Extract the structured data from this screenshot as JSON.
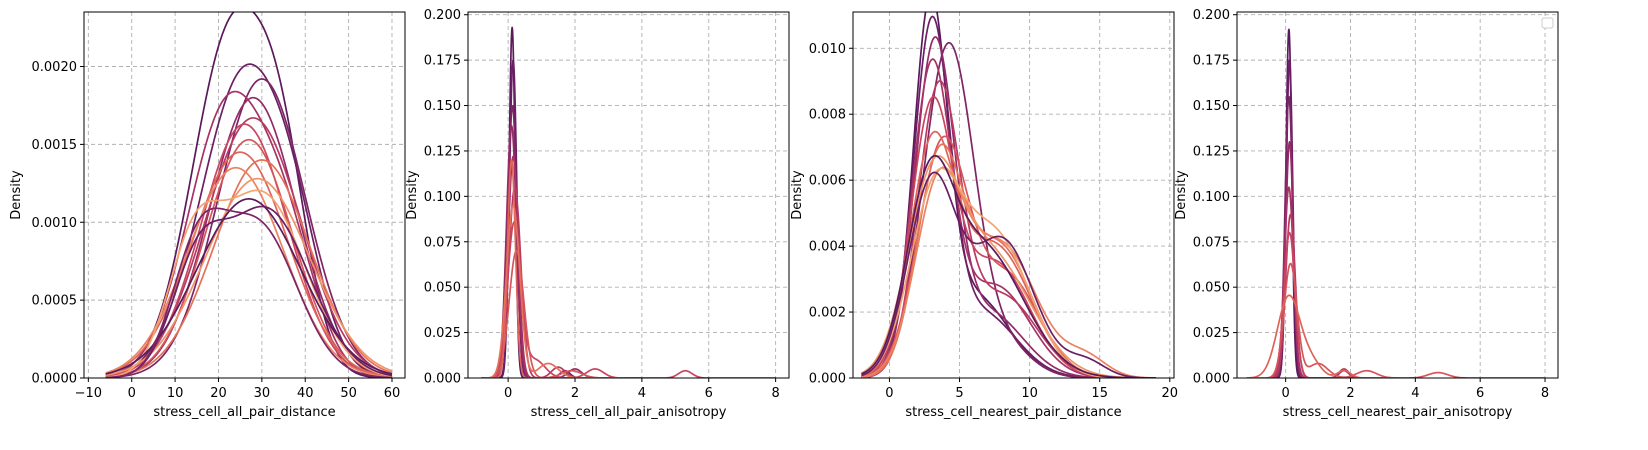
{
  "figure": {
    "background": "#ffffff"
  },
  "palette": [
    "#5a1a5c",
    "#6b1f64",
    "#7e2566",
    "#922b66",
    "#a73265",
    "#b83a62",
    "#c94660",
    "#d5555b",
    "#de6459",
    "#e57158",
    "#eb8260",
    "#ef9466",
    "#f3a46f"
  ],
  "chart_data": [
    {
      "type": "line",
      "xlabel": "stress_cell_all_pair_distance",
      "ylabel": "Density",
      "xlim": [
        -11,
        63
      ],
      "ylim": [
        0,
        0.00235
      ],
      "xticks": [
        -10,
        0,
        10,
        20,
        30,
        40,
        50,
        60
      ],
      "xtick_labels": [
        "−10",
        "0",
        "10",
        "20",
        "30",
        "40",
        "50",
        "60"
      ],
      "yticks": [
        0,
        0.0005,
        0.001,
        0.0015,
        0.002
      ],
      "ytick_labels": [
        "0.0000",
        "0.0005",
        "0.0010",
        "0.0015",
        "0.0020"
      ],
      "grid": true,
      "kde_series": [
        {
          "peaks": [
            [
              23,
              9,
              0.00221
            ],
            [
              35,
              6,
              0.0009
            ]
          ],
          "range": [
            -6,
            60
          ]
        },
        {
          "peaks": [
            [
              26,
              10,
              0.00195
            ],
            [
              38,
              6,
              0.0004
            ]
          ],
          "range": [
            -6,
            60
          ]
        },
        {
          "peaks": [
            [
              30,
              10,
              0.00192
            ]
          ],
          "range": [
            -6,
            60
          ]
        },
        {
          "peaks": [
            [
              28,
              10,
              0.0018
            ]
          ],
          "range": [
            -6,
            60
          ]
        },
        {
          "peaks": [
            [
              22,
              9,
              0.00172
            ],
            [
              36,
              7,
              0.0007
            ]
          ],
          "range": [
            -6,
            60
          ]
        },
        {
          "peaks": [
            [
              28,
              11,
              0.00167
            ]
          ],
          "range": [
            -6,
            60
          ]
        },
        {
          "peaks": [
            [
              26,
              10,
              0.00163
            ]
          ],
          "range": [
            -6,
            60
          ]
        },
        {
          "peaks": [
            [
              27,
              10,
              0.00153
            ]
          ],
          "range": [
            -6,
            60
          ]
        },
        {
          "peaks": [
            [
              25,
              11,
              0.00145
            ]
          ],
          "range": [
            -6,
            60
          ]
        },
        {
          "peaks": [
            [
              30,
              11,
              0.0014
            ]
          ],
          "range": [
            -6,
            60
          ]
        },
        {
          "peaks": [
            [
              24,
              11,
              0.00135
            ]
          ],
          "range": [
            -6,
            60
          ]
        },
        {
          "peaks": [
            [
              29,
              12,
              0.00128
            ]
          ],
          "range": [
            -6,
            60
          ]
        },
        {
          "peaks": [
            [
              14,
              6,
              0.0007
            ],
            [
              30,
              10,
              0.00118
            ]
          ],
          "range": [
            -6,
            60
          ]
        },
        {
          "peaks": [
            [
              27,
              12,
              0.00115
            ]
          ],
          "range": [
            -6,
            60
          ]
        },
        {
          "peaks": [
            [
              15,
              6,
              0.0006
            ],
            [
              31,
              10,
              0.00108
            ]
          ],
          "range": [
            -6,
            60
          ]
        },
        {
          "peaks": [
            [
              15,
              6,
              0.0007
            ],
            [
              29,
              9,
              0.00098
            ]
          ],
          "range": [
            -6,
            60
          ]
        }
      ]
    },
    {
      "type": "line",
      "xlabel": "stress_cell_all_pair_anisotropy",
      "ylabel": "Density",
      "xlim": [
        -1.2,
        8.4
      ],
      "ylim": [
        0,
        0.2015
      ],
      "xticks": [
        0,
        2,
        4,
        6,
        8
      ],
      "xtick_labels": [
        "0",
        "2",
        "4",
        "6",
        "8"
      ],
      "yticks": [
        0,
        0.025,
        0.05,
        0.075,
        0.1,
        0.125,
        0.15,
        0.175,
        0.2
      ],
      "ytick_labels": [
        "0.000",
        "0.025",
        "0.050",
        "0.075",
        "0.100",
        "0.125",
        "0.150",
        "0.175",
        "0.200"
      ],
      "grid": true,
      "kde_series": [
        {
          "peaks": [
            [
              0.12,
              0.09,
              0.193
            ]
          ],
          "range": [
            -0.3,
            2.5
          ]
        },
        {
          "peaks": [
            [
              0.15,
              0.11,
              0.175
            ]
          ],
          "range": [
            -0.3,
            2.5
          ]
        },
        {
          "peaks": [
            [
              0.13,
              0.13,
              0.15
            ],
            [
              1.7,
              0.15,
              0.004
            ]
          ],
          "range": [
            -0.4,
            3.0
          ]
        },
        {
          "peaks": [
            [
              0.1,
              0.15,
              0.139
            ],
            [
              2.0,
              0.2,
              0.005
            ]
          ],
          "range": [
            -0.5,
            3.5
          ]
        },
        {
          "peaks": [
            [
              0.15,
              0.15,
              0.122
            ]
          ],
          "range": [
            -0.5,
            3.0
          ]
        },
        {
          "peaks": [
            [
              0.2,
              0.18,
              0.105
            ],
            [
              1.5,
              0.2,
              0.006
            ]
          ],
          "range": [
            -0.6,
            3.5
          ]
        },
        {
          "peaks": [
            [
              0.18,
              0.2,
              0.085
            ],
            [
              0.8,
              0.3,
              0.01
            ],
            [
              2.6,
              0.25,
              0.005
            ],
            [
              5.3,
              0.2,
              0.004
            ]
          ],
          "range": [
            -0.8,
            8.0
          ]
        },
        {
          "peaks": [
            [
              0.25,
              0.22,
              0.07
            ],
            [
              1.9,
              0.3,
              0.004
            ]
          ],
          "range": [
            -0.8,
            4.0
          ]
        },
        {
          "peaks": [
            [
              0.1,
              0.12,
              0.12
            ]
          ],
          "range": [
            -0.4,
            2.5
          ]
        },
        {
          "peaks": [
            [
              0.15,
              0.2,
              0.095
            ],
            [
              1.2,
              0.3,
              0.008
            ]
          ],
          "range": [
            -0.7,
            3.5
          ]
        }
      ]
    },
    {
      "type": "line",
      "xlabel": "stress_cell_nearest_pair_distance",
      "ylabel": "Density",
      "xlim": [
        -2.6,
        20.3
      ],
      "ylim": [
        0,
        0.0111
      ],
      "xticks": [
        0,
        5,
        10,
        15,
        20
      ],
      "xtick_labels": [
        "0",
        "5",
        "10",
        "15",
        "20"
      ],
      "yticks": [
        0,
        0.002,
        0.004,
        0.006,
        0.008,
        0.01
      ],
      "ytick_labels": [
        "0.000",
        "0.002",
        "0.004",
        "0.006",
        "0.008",
        "0.010"
      ],
      "grid": true,
      "kde_series": [
        {
          "peaks": [
            [
              2.9,
              1.2,
              0.0105
            ],
            [
              6,
              2.5,
              0.0025
            ]
          ],
          "range": [
            -2,
            19
          ]
        },
        {
          "peaks": [
            [
              3.0,
              1.3,
              0.0102
            ],
            [
              6.5,
              2.5,
              0.002
            ]
          ],
          "range": [
            -2,
            19
          ]
        },
        {
          "peaks": [
            [
              4.2,
              1.8,
              0.01
            ],
            [
              8,
              2,
              0.001
            ]
          ],
          "range": [
            -2,
            19
          ]
        },
        {
          "peaks": [
            [
              3.2,
              1.4,
              0.0097
            ],
            [
              7,
              2.5,
              0.002
            ]
          ],
          "range": [
            -2,
            19
          ]
        },
        {
          "peaks": [
            [
              3.0,
              1.4,
              0.0091
            ],
            [
              7.5,
              2.5,
              0.0028
            ]
          ],
          "range": [
            -2,
            19
          ]
        },
        {
          "peaks": [
            [
              3.5,
              1.5,
              0.0085
            ],
            [
              8,
              2.5,
              0.0025
            ]
          ],
          "range": [
            -2,
            19
          ]
        },
        {
          "peaks": [
            [
              3.0,
              1.5,
              0.0078
            ],
            [
              7.5,
              2.5,
              0.0035
            ]
          ],
          "range": [
            -2,
            19
          ]
        },
        {
          "peaks": [
            [
              3.8,
              1.8,
              0.007
            ],
            [
              8.5,
              2.2,
              0.003
            ]
          ],
          "range": [
            -2,
            19
          ]
        },
        {
          "peaks": [
            [
              3.0,
              1.6,
              0.0065
            ],
            [
              7.5,
              2.6,
              0.004
            ]
          ],
          "range": [
            -2,
            19
          ]
        },
        {
          "peaks": [
            [
              3.5,
              1.6,
              0.0062
            ],
            [
              7.8,
              2.4,
              0.004
            ]
          ],
          "range": [
            -2,
            19
          ]
        },
        {
          "peaks": [
            [
              3.5,
              1.7,
              0.0055
            ],
            [
              8,
              2.5,
              0.004
            ],
            [
              14,
              1.5,
              0.0006
            ]
          ],
          "range": [
            -2,
            19
          ]
        },
        {
          "peaks": [
            [
              3.0,
              1.8,
              0.005
            ],
            [
              7,
              3.0,
              0.0038
            ]
          ],
          "range": [
            -2,
            19
          ]
        },
        {
          "peaks": [
            [
              3.2,
              1.8,
              0.0052
            ],
            [
              7.5,
              2.5,
              0.0043
            ]
          ],
          "range": [
            -2,
            19
          ]
        },
        {
          "peaks": [
            [
              2.8,
              1.6,
              0.0047
            ],
            [
              6.5,
              3.0,
              0.004
            ]
          ],
          "range": [
            -2,
            19
          ]
        },
        {
          "peaks": [
            [
              3.0,
              1.7,
              0.0058
            ],
            [
              8,
              2.3,
              0.0042
            ],
            [
              14,
              1.4,
              0.0005
            ]
          ],
          "range": [
            -2,
            19
          ]
        }
      ]
    },
    {
      "type": "line",
      "xlabel": "stress_cell_nearest_pair_anisotropy",
      "ylabel": "Density",
      "xlim": [
        -1.5,
        8.4
      ],
      "ylim": [
        0,
        0.2015
      ],
      "xticks": [
        0,
        2,
        4,
        6,
        8
      ],
      "xtick_labels": [
        "0",
        "2",
        "4",
        "6",
        "8"
      ],
      "yticks": [
        0,
        0.025,
        0.05,
        0.075,
        0.1,
        0.125,
        0.15,
        0.175,
        0.2
      ],
      "ytick_labels": [
        "0.000",
        "0.025",
        "0.050",
        "0.075",
        "0.100",
        "0.125",
        "0.150",
        "0.175",
        "0.200"
      ],
      "grid": true,
      "legend": "top-right",
      "kde_series": [
        {
          "peaks": [
            [
              0.1,
              0.09,
              0.192
            ]
          ],
          "range": [
            -0.3,
            2.0
          ]
        },
        {
          "peaks": [
            [
              0.12,
              0.1,
              0.175
            ]
          ],
          "range": [
            -0.3,
            2.0
          ]
        },
        {
          "peaks": [
            [
              0.1,
              0.12,
              0.155
            ]
          ],
          "range": [
            -0.4,
            2.5
          ]
        },
        {
          "peaks": [
            [
              0.12,
              0.12,
              0.13
            ],
            [
              1.8,
              0.15,
              0.004
            ]
          ],
          "range": [
            -0.4,
            2.5
          ]
        },
        {
          "peaks": [
            [
              0.1,
              0.14,
              0.105
            ]
          ],
          "range": [
            -0.5,
            2.5
          ]
        },
        {
          "peaks": [
            [
              0.15,
              0.15,
              0.09
            ],
            [
              1.8,
              0.15,
              0.005
            ]
          ],
          "range": [
            -0.5,
            2.5
          ]
        },
        {
          "peaks": [
            [
              0.12,
              0.17,
              0.08
            ]
          ],
          "range": [
            -0.6,
            3.0
          ]
        },
        {
          "peaks": [
            [
              0.15,
              0.2,
              0.063
            ],
            [
              1.0,
              0.3,
              0.008
            ],
            [
              2.5,
              0.3,
              0.004
            ],
            [
              4.7,
              0.3,
              0.003
            ]
          ],
          "range": [
            -1.0,
            8.0
          ]
        },
        {
          "peaks": [
            [
              0.1,
              0.35,
              0.045
            ],
            [
              0.8,
              0.3,
              0.008
            ],
            [
              1.8,
              0.2,
              0.004
            ]
          ],
          "range": [
            -1.2,
            3.5
          ]
        }
      ]
    }
  ]
}
